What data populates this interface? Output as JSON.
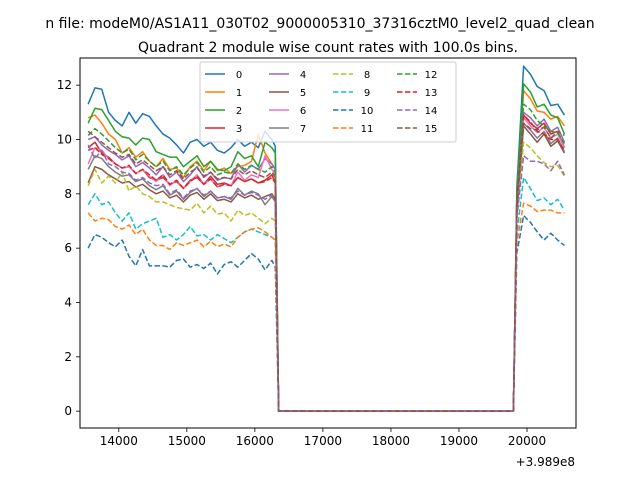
{
  "chart_data": {
    "type": "line",
    "suptitle": "n file: modeM0/AS1A11_030T02_9000005310_37316cztM0_level2_quad_clean",
    "title": "Quadrant 2 module wise count rates with 100.0s bins.",
    "xlabel": "",
    "ylabel": "",
    "x_offset_label": "+3.989e8",
    "xlim": [
      13430,
      20720
    ],
    "ylim": [
      -0.62,
      13.0
    ],
    "x_ticks": [
      14000,
      15000,
      16000,
      17000,
      18000,
      19000,
      20000
    ],
    "y_ticks": [
      0,
      2,
      4,
      6,
      8,
      10,
      12
    ],
    "x_tick_labels": [
      "14000",
      "15000",
      "16000",
      "17000",
      "18000",
      "19000",
      "20000"
    ],
    "y_tick_labels": [
      "0",
      "2",
      "4",
      "6",
      "8",
      "10",
      "12"
    ],
    "grid": false,
    "legend_position": "upper-center",
    "x": [
      13550,
      13650,
      13750,
      13850,
      13950,
      14050,
      14150,
      14250,
      14350,
      14450,
      14550,
      14650,
      14750,
      14850,
      14950,
      15050,
      15150,
      15250,
      15350,
      15450,
      15550,
      15650,
      15750,
      15850,
      15950,
      16050,
      16150,
      16250,
      16300,
      16350,
      16450,
      16550,
      16650,
      16750,
      16850,
      16950,
      17050,
      17150,
      17250,
      17350,
      17450,
      17550,
      17650,
      17750,
      17850,
      17950,
      18050,
      18150,
      18250,
      18350,
      18450,
      18550,
      18650,
      18750,
      18850,
      18950,
      19050,
      19150,
      19250,
      19350,
      19450,
      19550,
      19650,
      19750,
      19800,
      19850,
      19950,
      20050,
      20150,
      20250,
      20350,
      20450,
      20550
    ],
    "series": [
      {
        "name": "0",
        "color": "#1f77b4",
        "dash": "solid",
        "pre": [
          11.3,
          11.9,
          11.85,
          11.0,
          10.7,
          10.5,
          11.0,
          10.6,
          10.95,
          10.85,
          10.5,
          10.2,
          10.05,
          9.8,
          9.5,
          9.9,
          10.0,
          9.75,
          9.9,
          9.6,
          9.5,
          9.7,
          10.0,
          9.75,
          9.9,
          9.7,
          10.3,
          10.0,
          9.75
        ],
        "post": [
          8.2,
          12.7,
          12.4,
          11.95,
          11.8,
          11.25,
          11.3,
          10.9,
          0.95
        ]
      },
      {
        "name": "1",
        "color": "#ff7f0e",
        "dash": "solid",
        "pre": [
          10.8,
          10.9,
          10.6,
          10.2,
          10.0,
          9.5,
          9.7,
          9.35,
          9.55,
          9.2,
          9.0,
          9.3,
          8.9,
          8.95,
          8.6,
          9.0,
          9.2,
          8.85,
          9.2,
          8.85,
          8.95,
          8.75,
          9.0,
          9.05,
          9.2,
          10.2,
          9.5,
          9.1,
          8.9
        ],
        "post": [
          7.7,
          11.8,
          11.5,
          11.05,
          11.0,
          10.75,
          10.85,
          10.5,
          0.9
        ]
      },
      {
        "name": "2",
        "color": "#2ca02c",
        "dash": "solid",
        "pre": [
          10.6,
          11.15,
          11.1,
          10.7,
          10.3,
          10.1,
          10.05,
          9.8,
          10.05,
          10.0,
          9.55,
          9.45,
          9.35,
          9.35,
          9.0,
          9.2,
          9.4,
          9.0,
          9.2,
          8.9,
          8.85,
          9.0,
          9.55,
          9.3,
          9.4,
          9.0,
          9.9,
          9.7,
          9.5
        ],
        "post": [
          7.9,
          12.05,
          11.75,
          11.2,
          11.3,
          10.9,
          10.8,
          10.2,
          0.9
        ]
      },
      {
        "name": "3",
        "color": "#d62728",
        "dash": "solid",
        "pre": [
          9.7,
          9.9,
          9.5,
          9.35,
          9.1,
          8.95,
          9.0,
          8.75,
          8.9,
          8.6,
          8.5,
          8.6,
          8.35,
          8.45,
          8.2,
          8.5,
          8.6,
          8.35,
          8.65,
          8.35,
          8.4,
          8.3,
          8.6,
          8.45,
          8.55,
          8.4,
          8.5,
          8.7,
          8.4
        ],
        "post": [
          7.5,
          10.9,
          10.6,
          10.4,
          10.6,
          10.2,
          10.3,
          9.7,
          0.9
        ]
      },
      {
        "name": "4",
        "color": "#9467bd",
        "dash": "solid",
        "pre": [
          10.0,
          10.1,
          9.8,
          9.6,
          9.45,
          9.25,
          9.4,
          9.0,
          9.15,
          8.95,
          8.7,
          9.0,
          8.6,
          8.8,
          8.45,
          8.7,
          9.0,
          8.6,
          8.8,
          8.5,
          8.6,
          8.55,
          9.1,
          8.8,
          9.05,
          8.9,
          9.3,
          9.1,
          8.9
        ],
        "post": [
          7.7,
          11.0,
          10.8,
          10.5,
          10.75,
          10.3,
          10.45,
          9.9,
          0.9
        ]
      },
      {
        "name": "5",
        "color": "#8c564b",
        "dash": "solid",
        "pre": [
          8.4,
          9.0,
          8.9,
          8.7,
          8.55,
          8.4,
          8.45,
          8.25,
          8.35,
          8.15,
          8.0,
          8.1,
          7.85,
          7.95,
          7.7,
          7.95,
          8.05,
          7.8,
          8.0,
          7.75,
          7.8,
          7.7,
          8.0,
          7.85,
          7.95,
          7.8,
          7.9,
          8.0,
          7.8
        ],
        "post": [
          7.2,
          10.5,
          10.2,
          9.9,
          10.2,
          9.75,
          9.95,
          9.5,
          0.85
        ]
      },
      {
        "name": "6",
        "color": "#e377c2",
        "dash": "solid",
        "pre": [
          9.1,
          9.7,
          9.6,
          9.3,
          9.1,
          8.95,
          9.0,
          8.75,
          8.9,
          8.65,
          8.45,
          8.7,
          8.3,
          8.5,
          8.2,
          8.45,
          8.7,
          8.35,
          8.55,
          8.25,
          8.35,
          8.3,
          8.8,
          8.5,
          8.7,
          8.6,
          9.4,
          8.9,
          8.7
        ],
        "post": [
          7.5,
          10.8,
          10.5,
          10.25,
          10.45,
          10.05,
          10.2,
          9.7,
          0.9
        ]
      },
      {
        "name": "7",
        "color": "#7f7f7f",
        "dash": "solid",
        "pre": [
          8.9,
          9.4,
          9.3,
          9.0,
          8.8,
          8.65,
          8.7,
          8.45,
          8.55,
          8.3,
          8.15,
          8.3,
          7.95,
          8.1,
          7.8,
          8.05,
          8.2,
          7.9,
          8.1,
          7.85,
          7.9,
          7.8,
          8.2,
          7.95,
          8.1,
          8.0,
          7.6,
          7.9,
          7.7
        ],
        "post": [
          7.3,
          10.6,
          10.35,
          10.05,
          10.3,
          9.85,
          10.05,
          9.55,
          0.85
        ]
      },
      {
        "name": "8",
        "color": "#bcbd22",
        "dash": "dashed",
        "pre": [
          8.3,
          8.9,
          8.4,
          8.65,
          8.4,
          8.8,
          8.1,
          8.3,
          8.0,
          7.9,
          7.7,
          7.7,
          7.6,
          7.5,
          7.45,
          7.4,
          7.65,
          7.3,
          7.55,
          7.25,
          7.3,
          7.0,
          7.4,
          7.2,
          7.3,
          7.1,
          6.9,
          7.1,
          7.0
        ],
        "post": [
          7.0,
          9.9,
          9.7,
          9.4,
          9.15,
          9.0,
          9.05,
          8.65,
          0.85
        ]
      },
      {
        "name": "9",
        "color": "#17becf",
        "dash": "dashed",
        "pre": [
          7.6,
          8.0,
          7.6,
          7.7,
          7.3,
          7.0,
          7.3,
          6.7,
          6.9,
          7.0,
          7.1,
          6.4,
          6.5,
          6.3,
          6.5,
          6.8,
          6.45,
          6.5,
          6.3,
          6.5,
          6.35,
          6.2,
          6.4,
          6.6,
          6.7,
          6.6,
          6.5,
          6.4,
          6.3
        ],
        "post": [
          6.5,
          8.6,
          8.2,
          7.75,
          7.85,
          7.6,
          7.8,
          7.4,
          0.85
        ]
      },
      {
        "name": "10",
        "color": "#1f77b4",
        "dash": "dashed",
        "pre": [
          6.0,
          6.5,
          6.4,
          6.2,
          6.05,
          6.3,
          5.7,
          5.35,
          5.95,
          5.35,
          5.35,
          5.35,
          5.3,
          5.55,
          5.6,
          5.3,
          5.4,
          5.25,
          5.45,
          5.05,
          5.4,
          5.5,
          5.3,
          5.55,
          5.8,
          5.6,
          5.2,
          5.55,
          5.3
        ],
        "post": [
          5.8,
          7.2,
          6.95,
          6.6,
          6.3,
          6.55,
          6.3,
          6.1,
          0.8
        ]
      },
      {
        "name": "11",
        "color": "#ff7f0e",
        "dash": "dashed",
        "pre": [
          7.3,
          7.0,
          7.1,
          7.05,
          6.8,
          6.7,
          6.85,
          6.5,
          6.7,
          6.3,
          6.1,
          6.1,
          5.95,
          6.2,
          6.1,
          6.2,
          6.3,
          6.05,
          6.25,
          6.05,
          6.15,
          6.05,
          6.4,
          6.6,
          6.7,
          6.75,
          6.6,
          6.4,
          6.3
        ],
        "post": [
          6.2,
          7.65,
          7.55,
          7.35,
          7.4,
          7.4,
          7.3,
          7.3,
          0.85
        ]
      },
      {
        "name": "12",
        "color": "#2ca02c",
        "dash": "dashed",
        "pre": [
          10.15,
          10.4,
          10.2,
          9.95,
          9.7,
          9.5,
          9.65,
          9.25,
          9.45,
          9.2,
          9.0,
          9.2,
          8.85,
          9.0,
          8.7,
          8.95,
          9.15,
          8.8,
          9.0,
          8.7,
          8.8,
          8.75,
          9.1,
          8.9,
          9.05,
          8.9,
          8.8,
          9.0,
          8.8
        ],
        "post": [
          7.8,
          11.3,
          11.1,
          10.7,
          10.5,
          10.3,
          10.25,
          9.85,
          0.9
        ]
      },
      {
        "name": "13",
        "color": "#d62728",
        "dash": "dashed",
        "pre": [
          9.6,
          9.7,
          9.45,
          9.3,
          9.1,
          8.95,
          9.05,
          8.75,
          8.9,
          8.7,
          8.5,
          8.7,
          8.35,
          8.5,
          8.2,
          8.45,
          8.65,
          8.35,
          8.55,
          8.25,
          8.35,
          8.3,
          8.6,
          8.45,
          8.55,
          8.4,
          8.45,
          8.6,
          8.4
        ],
        "post": [
          7.6,
          10.9,
          10.65,
          10.3,
          10.2,
          10.0,
          10.0,
          9.6,
          0.9
        ]
      },
      {
        "name": "14",
        "color": "#9467bd",
        "dash": "dashed",
        "pre": [
          9.8,
          9.3,
          9.6,
          9.1,
          9.0,
          8.8,
          8.75,
          8.5,
          8.6,
          8.4,
          8.3,
          8.35,
          8.0,
          8.15,
          7.85,
          8.1,
          8.2,
          7.95,
          8.1,
          7.85,
          7.9,
          7.85,
          8.1,
          7.95,
          8.05,
          7.95,
          7.8,
          7.95,
          7.8
        ],
        "post": [
          7.1,
          9.4,
          9.2,
          9.2,
          9.1,
          8.85,
          9.2,
          8.7,
          0.85
        ]
      },
      {
        "name": "15",
        "color": "#8c564b",
        "dash": "dashed",
        "pre": [
          10.3,
          10.1,
          9.9,
          9.7,
          9.5,
          9.35,
          9.45,
          9.1,
          9.25,
          9.05,
          8.85,
          9.0,
          8.7,
          8.85,
          8.55,
          8.8,
          8.95,
          8.65,
          8.8,
          8.55,
          8.6,
          8.55,
          8.9,
          8.7,
          8.85,
          8.7,
          8.6,
          8.8,
          8.6
        ],
        "post": [
          7.5,
          10.6,
          10.4,
          10.35,
          10.45,
          10.05,
          10.3,
          10.15,
          0.9
        ]
      }
    ]
  }
}
